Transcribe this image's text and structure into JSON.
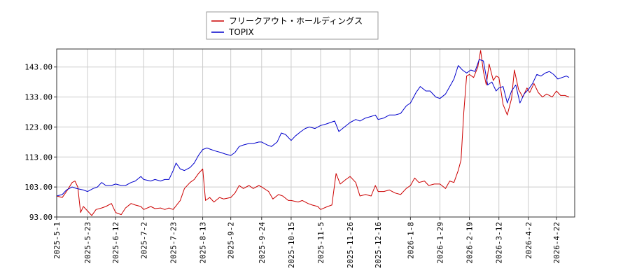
{
  "chart_data": {
    "type": "line",
    "title": "",
    "xlabel": "",
    "ylabel": "",
    "ylim": [
      93,
      149
    ],
    "grid": true,
    "legend_placement": "top-center",
    "x_range": [
      "2025-05-01",
      "2026-05-05"
    ],
    "y_ticks": [
      "93.00",
      "103.00",
      "113.00",
      "123.00",
      "133.00",
      "143.00"
    ],
    "x_ticks": [
      "2025-5-1",
      "2025-5-23",
      "2025-6-12",
      "2025-7-2",
      "2025-7-23",
      "2025-8-13",
      "2025-9-2",
      "2025-9-24",
      "2025-10-15",
      "2025-11-5",
      "2025-11-26",
      "2025-12-16",
      "2026-1-8",
      "2026-1-29",
      "2026-2-19",
      "2026-3-12",
      "2026-4-2",
      "2026-4-22"
    ],
    "series": [
      {
        "name": "フリークアウト・ホールディングス",
        "color": "#cc0000",
        "points": [
          [
            "2025-05-01",
            100.0
          ],
          [
            "2025-05-05",
            99.5
          ],
          [
            "2025-05-08",
            101.5
          ],
          [
            "2025-05-12",
            104.5
          ],
          [
            "2025-05-14",
            105.0
          ],
          [
            "2025-05-16",
            103.0
          ],
          [
            "2025-05-18",
            94.5
          ],
          [
            "2025-05-20",
            96.5
          ],
          [
            "2025-05-23",
            95.0
          ],
          [
            "2025-05-26",
            93.5
          ],
          [
            "2025-05-29",
            95.5
          ],
          [
            "2025-06-02",
            96.0
          ],
          [
            "2025-06-05",
            96.5
          ],
          [
            "2025-06-09",
            97.5
          ],
          [
            "2025-06-12",
            94.5
          ],
          [
            "2025-06-16",
            93.8
          ],
          [
            "2025-06-19",
            96.0
          ],
          [
            "2025-06-23",
            97.5
          ],
          [
            "2025-06-26",
            97.0
          ],
          [
            "2025-06-30",
            96.5
          ],
          [
            "2025-07-02",
            95.5
          ],
          [
            "2025-07-07",
            96.5
          ],
          [
            "2025-07-10",
            95.8
          ],
          [
            "2025-07-14",
            96.0
          ],
          [
            "2025-07-17",
            95.5
          ],
          [
            "2025-07-20",
            96.0
          ],
          [
            "2025-07-23",
            95.5
          ],
          [
            "2025-07-28",
            98.5
          ],
          [
            "2025-07-31",
            102.5
          ],
          [
            "2025-08-04",
            104.5
          ],
          [
            "2025-08-07",
            105.5
          ],
          [
            "2025-08-10",
            107.5
          ],
          [
            "2025-08-13",
            109.0
          ],
          [
            "2025-08-15",
            98.5
          ],
          [
            "2025-08-18",
            99.5
          ],
          [
            "2025-08-21",
            98.0
          ],
          [
            "2025-08-25",
            99.5
          ],
          [
            "2025-08-28",
            99.0
          ],
          [
            "2025-09-02",
            99.5
          ],
          [
            "2025-09-05",
            101.0
          ],
          [
            "2025-09-08",
            103.5
          ],
          [
            "2025-09-11",
            102.5
          ],
          [
            "2025-09-15",
            103.5
          ],
          [
            "2025-09-18",
            102.5
          ],
          [
            "2025-09-22",
            103.5
          ],
          [
            "2025-09-24",
            103.0
          ],
          [
            "2025-09-29",
            101.5
          ],
          [
            "2025-10-02",
            99.0
          ],
          [
            "2025-10-06",
            100.5
          ],
          [
            "2025-10-09",
            100.0
          ],
          [
            "2025-10-13",
            98.5
          ],
          [
            "2025-10-15",
            98.5
          ],
          [
            "2025-10-20",
            98.0
          ],
          [
            "2025-10-23",
            98.5
          ],
          [
            "2025-10-27",
            97.5
          ],
          [
            "2025-10-30",
            97.0
          ],
          [
            "2025-11-03",
            96.5
          ],
          [
            "2025-11-05",
            95.5
          ],
          [
            "2025-11-10",
            96.5
          ],
          [
            "2025-11-13",
            97.0
          ],
          [
            "2025-11-16",
            107.5
          ],
          [
            "2025-11-19",
            104.0
          ],
          [
            "2025-11-23",
            105.5
          ],
          [
            "2025-11-26",
            106.5
          ],
          [
            "2025-11-30",
            104.5
          ],
          [
            "2025-12-03",
            100.0
          ],
          [
            "2025-12-07",
            100.5
          ],
          [
            "2025-12-11",
            100.0
          ],
          [
            "2025-12-14",
            103.5
          ],
          [
            "2025-12-16",
            101.5
          ],
          [
            "2025-12-20",
            101.5
          ],
          [
            "2025-12-24",
            102.0
          ],
          [
            "2025-12-28",
            101.0
          ],
          [
            "2026-01-01",
            100.5
          ],
          [
            "2026-01-05",
            102.5
          ],
          [
            "2026-01-08",
            103.5
          ],
          [
            "2026-01-11",
            106.0
          ],
          [
            "2026-01-14",
            104.5
          ],
          [
            "2026-01-18",
            105.0
          ],
          [
            "2026-01-21",
            103.5
          ],
          [
            "2026-01-25",
            104.0
          ],
          [
            "2026-01-29",
            104.0
          ],
          [
            "2026-02-02",
            102.5
          ],
          [
            "2026-02-05",
            105.0
          ],
          [
            "2026-02-08",
            104.5
          ],
          [
            "2026-02-11",
            108.5
          ],
          [
            "2026-02-13",
            112.0
          ],
          [
            "2026-02-15",
            128.0
          ],
          [
            "2026-02-17",
            140.0
          ],
          [
            "2026-02-19",
            140.5
          ],
          [
            "2026-02-22",
            139.5
          ],
          [
            "2026-02-25",
            143.0
          ],
          [
            "2026-02-27",
            148.5
          ],
          [
            "2026-03-01",
            141.5
          ],
          [
            "2026-03-03",
            137.0
          ],
          [
            "2026-03-05",
            144.0
          ],
          [
            "2026-03-08",
            138.5
          ],
          [
            "2026-03-10",
            140.0
          ],
          [
            "2026-03-12",
            139.5
          ],
          [
            "2026-03-15",
            130.5
          ],
          [
            "2026-03-18",
            127.0
          ],
          [
            "2026-03-21",
            132.5
          ],
          [
            "2026-03-23",
            142.0
          ],
          [
            "2026-03-26",
            135.5
          ],
          [
            "2026-03-29",
            133.0
          ],
          [
            "2026-04-01",
            136.0
          ],
          [
            "2026-04-03",
            134.5
          ],
          [
            "2026-04-06",
            137.5
          ],
          [
            "2026-04-09",
            134.5
          ],
          [
            "2026-04-12",
            133.0
          ],
          [
            "2026-04-15",
            134.0
          ],
          [
            "2026-04-19",
            133.0
          ],
          [
            "2026-04-22",
            135.0
          ],
          [
            "2026-04-25",
            133.5
          ],
          [
            "2026-04-28",
            133.5
          ],
          [
            "2026-05-01",
            133.0
          ]
        ]
      },
      {
        "name": "TOPIX",
        "color": "#0000cc",
        "points": [
          [
            "2025-05-01",
            100.0
          ],
          [
            "2025-05-05",
            100.5
          ],
          [
            "2025-05-08",
            102.0
          ],
          [
            "2025-05-12",
            103.0
          ],
          [
            "2025-05-15",
            102.5
          ],
          [
            "2025-05-20",
            102.0
          ],
          [
            "2025-05-23",
            101.5
          ],
          [
            "2025-05-27",
            102.5
          ],
          [
            "2025-05-30",
            103.0
          ],
          [
            "2025-06-02",
            104.5
          ],
          [
            "2025-06-05",
            103.5
          ],
          [
            "2025-06-09",
            103.5
          ],
          [
            "2025-06-12",
            104.0
          ],
          [
            "2025-06-16",
            103.5
          ],
          [
            "2025-06-19",
            103.5
          ],
          [
            "2025-06-23",
            104.5
          ],
          [
            "2025-06-26",
            105.0
          ],
          [
            "2025-06-30",
            106.5
          ],
          [
            "2025-07-02",
            105.5
          ],
          [
            "2025-07-07",
            105.0
          ],
          [
            "2025-07-10",
            105.5
          ],
          [
            "2025-07-14",
            105.0
          ],
          [
            "2025-07-17",
            105.5
          ],
          [
            "2025-07-20",
            105.5
          ],
          [
            "2025-07-23",
            108.5
          ],
          [
            "2025-07-25",
            111.0
          ],
          [
            "2025-07-28",
            109.0
          ],
          [
            "2025-07-31",
            108.5
          ],
          [
            "2025-08-04",
            109.5
          ],
          [
            "2025-08-07",
            111.0
          ],
          [
            "2025-08-10",
            113.5
          ],
          [
            "2025-08-13",
            115.5
          ],
          [
            "2025-08-16",
            116.0
          ],
          [
            "2025-08-19",
            115.5
          ],
          [
            "2025-08-22",
            115.0
          ],
          [
            "2025-08-26",
            114.5
          ],
          [
            "2025-08-29",
            114.0
          ],
          [
            "2025-09-02",
            113.5
          ],
          [
            "2025-09-05",
            114.5
          ],
          [
            "2025-09-08",
            116.5
          ],
          [
            "2025-09-11",
            117.0
          ],
          [
            "2025-09-15",
            117.5
          ],
          [
            "2025-09-18",
            117.5
          ],
          [
            "2025-09-22",
            118.0
          ],
          [
            "2025-09-24",
            118.0
          ],
          [
            "2025-09-28",
            117.0
          ],
          [
            "2025-10-01",
            116.5
          ],
          [
            "2025-10-05",
            118.0
          ],
          [
            "2025-10-08",
            121.0
          ],
          [
            "2025-10-11",
            120.5
          ],
          [
            "2025-10-15",
            118.5
          ],
          [
            "2025-10-18",
            120.0
          ],
          [
            "2025-10-22",
            121.5
          ],
          [
            "2025-10-25",
            122.5
          ],
          [
            "2025-10-28",
            123.0
          ],
          [
            "2025-11-01",
            122.5
          ],
          [
            "2025-11-05",
            123.5
          ],
          [
            "2025-11-09",
            124.0
          ],
          [
            "2025-11-12",
            124.5
          ],
          [
            "2025-11-15",
            125.0
          ],
          [
            "2025-11-18",
            121.5
          ],
          [
            "2025-11-22",
            123.0
          ],
          [
            "2025-11-26",
            124.5
          ],
          [
            "2025-11-30",
            125.5
          ],
          [
            "2025-12-03",
            125.0
          ],
          [
            "2025-12-07",
            126.0
          ],
          [
            "2025-12-11",
            126.5
          ],
          [
            "2025-12-14",
            127.0
          ],
          [
            "2025-12-16",
            125.5
          ],
          [
            "2025-12-20",
            126.0
          ],
          [
            "2025-12-24",
            127.0
          ],
          [
            "2025-12-28",
            127.0
          ],
          [
            "2026-01-01",
            127.5
          ],
          [
            "2026-01-05",
            130.0
          ],
          [
            "2026-01-08",
            131.0
          ],
          [
            "2026-01-12",
            134.5
          ],
          [
            "2026-01-15",
            136.5
          ],
          [
            "2026-01-19",
            135.0
          ],
          [
            "2026-01-22",
            135.0
          ],
          [
            "2026-01-26",
            133.0
          ],
          [
            "2026-01-29",
            132.5
          ],
          [
            "2026-02-02",
            134.0
          ],
          [
            "2026-02-05",
            136.5
          ],
          [
            "2026-02-08",
            139.0
          ],
          [
            "2026-02-11",
            143.5
          ],
          [
            "2026-02-14",
            142.0
          ],
          [
            "2026-02-17",
            141.0
          ],
          [
            "2026-02-20",
            142.0
          ],
          [
            "2026-02-23",
            141.5
          ],
          [
            "2026-02-26",
            145.5
          ],
          [
            "2026-03-01",
            145.0
          ],
          [
            "2026-03-04",
            137.0
          ],
          [
            "2026-03-07",
            138.0
          ],
          [
            "2026-03-10",
            135.0
          ],
          [
            "2026-03-12",
            136.0
          ],
          [
            "2026-03-15",
            136.5
          ],
          [
            "2026-03-18",
            131.0
          ],
          [
            "2026-03-21",
            135.0
          ],
          [
            "2026-03-24",
            137.0
          ],
          [
            "2026-03-27",
            131.0
          ],
          [
            "2026-03-30",
            134.0
          ],
          [
            "2026-04-02",
            135.5
          ],
          [
            "2026-04-05",
            137.5
          ],
          [
            "2026-04-08",
            140.5
          ],
          [
            "2026-04-11",
            140.0
          ],
          [
            "2026-04-14",
            141.0
          ],
          [
            "2026-04-17",
            141.5
          ],
          [
            "2026-04-20",
            140.5
          ],
          [
            "2026-04-23",
            139.0
          ],
          [
            "2026-04-26",
            139.5
          ],
          [
            "2026-04-29",
            140.0
          ],
          [
            "2026-05-01",
            139.5
          ]
        ]
      }
    ]
  }
}
